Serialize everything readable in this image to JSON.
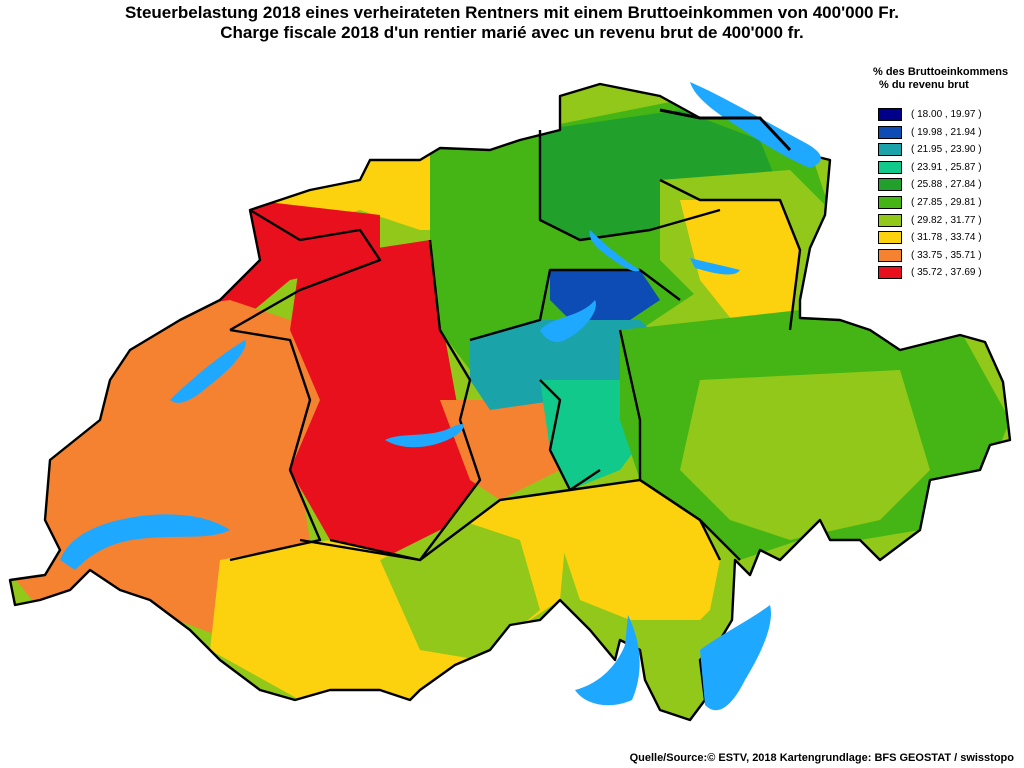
{
  "title_de": "Steuerbelastung 2018 eines verheirateten Rentners mit einem Bruttoeinkommen von 400'000 Fr.",
  "title_fr": "Charge fiscale 2018 d'un rentier marié avec un revenu brut de 400'000 fr.",
  "legend": {
    "heading_de": "% des Bruttoeinkommens",
    "heading_fr": "% du revenu brut",
    "classes": [
      {
        "label": "( 18.00 , 19.97 )",
        "color": "#00008b"
      },
      {
        "label": "( 19.98 , 21.94 )",
        "color": "#0d4bb5"
      },
      {
        "label": "( 21.95 , 23.90 )",
        "color": "#1aa3a8"
      },
      {
        "label": "( 23.91 , 25.87 )",
        "color": "#10c98a"
      },
      {
        "label": "( 25.88 , 27.84 )",
        "color": "#22a02c"
      },
      {
        "label": "( 27.85 , 29.81 )",
        "color": "#44b514"
      },
      {
        "label": "( 29.82 , 31.77 )",
        "color": "#92c81a"
      },
      {
        "label": "( 31.78 , 33.74 )",
        "color": "#fcd20e"
      },
      {
        "label": "( 33.75 , 35.71 )",
        "color": "#f58231"
      },
      {
        "label": "( 35.72 , 37.69 )",
        "color": "#e8101c"
      }
    ]
  },
  "lake_color": "#1fa8ff",
  "border_color": "#000000",
  "source": "Quelle/Source:© ESTV, 2018 Kartengrundlage: BFS GEOSTAT / swisstopo"
}
